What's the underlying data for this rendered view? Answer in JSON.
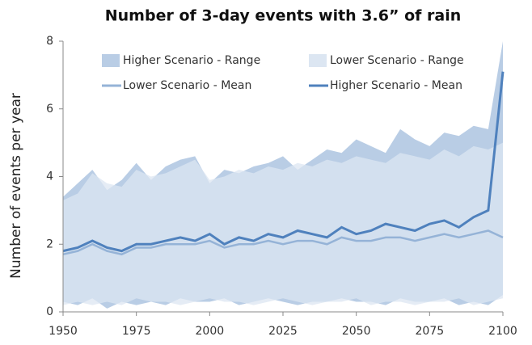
{
  "chart_data": {
    "type": "line",
    "title": "Number of 3-day events with 3.6” of rain",
    "y_label": "Number of events per year",
    "x": [
      1950,
      1955,
      1960,
      1965,
      1970,
      1975,
      1980,
      1985,
      1990,
      1995,
      2000,
      2005,
      2010,
      2015,
      2020,
      2025,
      2030,
      2035,
      2040,
      2045,
      2050,
      2055,
      2060,
      2065,
      2070,
      2075,
      2080,
      2085,
      2090,
      2095,
      2100
    ],
    "series": [
      {
        "name": "Higher Scenario - Range",
        "color": "#b9cde5",
        "kind": "range",
        "low": [
          0.3,
          0.2,
          0.4,
          0.1,
          0.3,
          0.2,
          0.3,
          0.2,
          0.4,
          0.3,
          0.3,
          0.4,
          0.2,
          0.3,
          0.4,
          0.3,
          0.2,
          0.3,
          0.3,
          0.4,
          0.3,
          0.3,
          0.2,
          0.4,
          0.3,
          0.3,
          0.4,
          0.2,
          0.3,
          0.2,
          0.5
        ],
        "high": [
          3.4,
          3.8,
          4.2,
          3.6,
          3.9,
          4.4,
          3.9,
          4.3,
          4.5,
          4.6,
          3.8,
          4.2,
          4.1,
          4.3,
          4.4,
          4.6,
          4.2,
          4.5,
          4.8,
          4.7,
          5.1,
          4.9,
          4.7,
          5.4,
          5.1,
          4.9,
          5.3,
          5.2,
          5.5,
          5.4,
          8
        ]
      },
      {
        "name": "Lower Scenario - Range",
        "color": "#dce6f2",
        "kind": "range",
        "low": [
          0.2,
          0.3,
          0.2,
          0.3,
          0.2,
          0.4,
          0.3,
          0.3,
          0.2,
          0.3,
          0.4,
          0.3,
          0.3,
          0.2,
          0.3,
          0.4,
          0.3,
          0.2,
          0.3,
          0.3,
          0.4,
          0.2,
          0.3,
          0.3,
          0.2,
          0.3,
          0.3,
          0.4,
          0.2,
          0.3,
          0.4
        ],
        "high": [
          3.3,
          3.5,
          4.1,
          3.8,
          3.7,
          4.2,
          4.0,
          4.1,
          4.3,
          4.5,
          3.9,
          4.0,
          4.2,
          4.1,
          4.3,
          4.2,
          4.4,
          4.3,
          4.5,
          4.4,
          4.6,
          4.5,
          4.4,
          4.7,
          4.6,
          4.5,
          4.8,
          4.6,
          4.9,
          4.8,
          5.0
        ]
      },
      {
        "name": "Lower Scenario - Mean",
        "color": "#95b3d7",
        "kind": "mean",
        "values": [
          1.7,
          1.8,
          2.0,
          1.8,
          1.7,
          1.9,
          1.9,
          2.0,
          2.0,
          2.0,
          2.1,
          1.9,
          2.0,
          2.0,
          2.1,
          2.0,
          2.1,
          2.1,
          2.0,
          2.2,
          2.1,
          2.1,
          2.2,
          2.2,
          2.1,
          2.2,
          2.3,
          2.2,
          2.3,
          2.4,
          2.2
        ]
      },
      {
        "name": "Higher Scenario - Mean",
        "color": "#4f81bd",
        "kind": "mean",
        "values": [
          1.8,
          1.9,
          2.1,
          1.9,
          1.8,
          2.0,
          2.0,
          2.1,
          2.2,
          2.1,
          2.3,
          2.0,
          2.2,
          2.1,
          2.3,
          2.2,
          2.4,
          2.3,
          2.2,
          2.5,
          2.3,
          2.4,
          2.6,
          2.5,
          2.4,
          2.6,
          2.7,
          2.5,
          2.8,
          3.0,
          7.1
        ]
      }
    ],
    "xlim": [
      1950,
      2100
    ],
    "xticks": [
      1950,
      1975,
      2000,
      2025,
      2050,
      2075,
      2100
    ],
    "ylim": [
      0,
      8
    ],
    "yticks": [
      0,
      2,
      4,
      6,
      8
    ]
  }
}
